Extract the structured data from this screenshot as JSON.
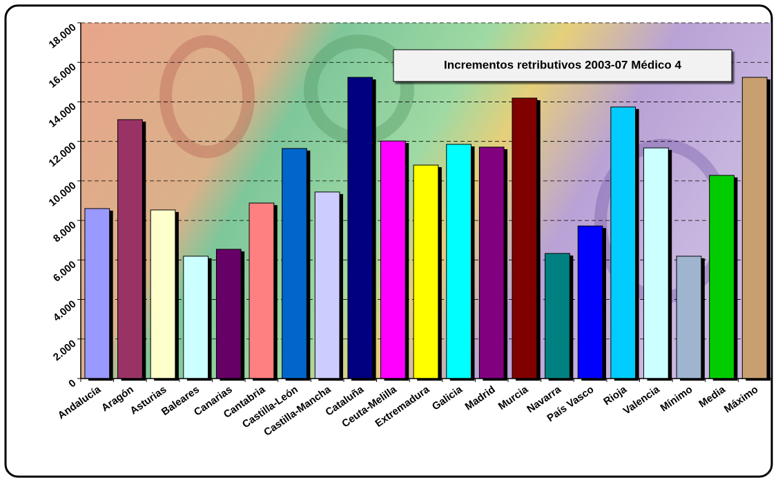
{
  "chart_data": {
    "type": "bar",
    "title": "Incrementos retributivos 2003-07 Médico 4",
    "categories": [
      "Andalucía",
      "Aragón",
      "Asturias",
      "Baleares",
      "Canarias",
      "Cantabria",
      "Castilla-León",
      "Castilla-Mancha",
      "Cataluña",
      "Ceuta-Melilla",
      "Extremadura",
      "Galicia",
      "Madrid",
      "Murcia",
      "Navarra",
      "País Vasco",
      "Rioja",
      "Valencia",
      "Mínimo",
      "Media",
      "Máximo"
    ],
    "values": [
      8600,
      13100,
      8530,
      6190,
      6540,
      8880,
      11640,
      9440,
      15240,
      12020,
      10800,
      11850,
      11710,
      14190,
      6330,
      7720,
      13740,
      11670,
      6190,
      10280,
      15240
    ],
    "colors": [
      "#9999ff",
      "#993366",
      "#ffffcc",
      "#ccffff",
      "#660066",
      "#ff8080",
      "#0066cc",
      "#ccccff",
      "#000080",
      "#ff00ff",
      "#ffff00",
      "#00ffff",
      "#800080",
      "#800000",
      "#008080",
      "#0000ff",
      "#00ccff",
      "#ccffff",
      "#9fb4cf",
      "#00cc00",
      "#c8a070"
    ],
    "ylim": [
      0,
      18000
    ],
    "yticks": [
      0,
      {
        "value": 2000,
        "label": "2.000"
      },
      {
        "value": 4000,
        "label": "4.000"
      },
      {
        "value": 6000,
        "label": "6.000"
      },
      {
        "value": 8000,
        "label": "8.000"
      },
      {
        "value": 10000,
        "label": "10.000"
      },
      {
        "value": 12000,
        "label": "12.000"
      },
      {
        "value": 14000,
        "label": "14.000"
      },
      {
        "value": 16000,
        "label": "16.000"
      },
      {
        "value": 18000,
        "label": "18.000"
      }
    ],
    "grid": true
  }
}
